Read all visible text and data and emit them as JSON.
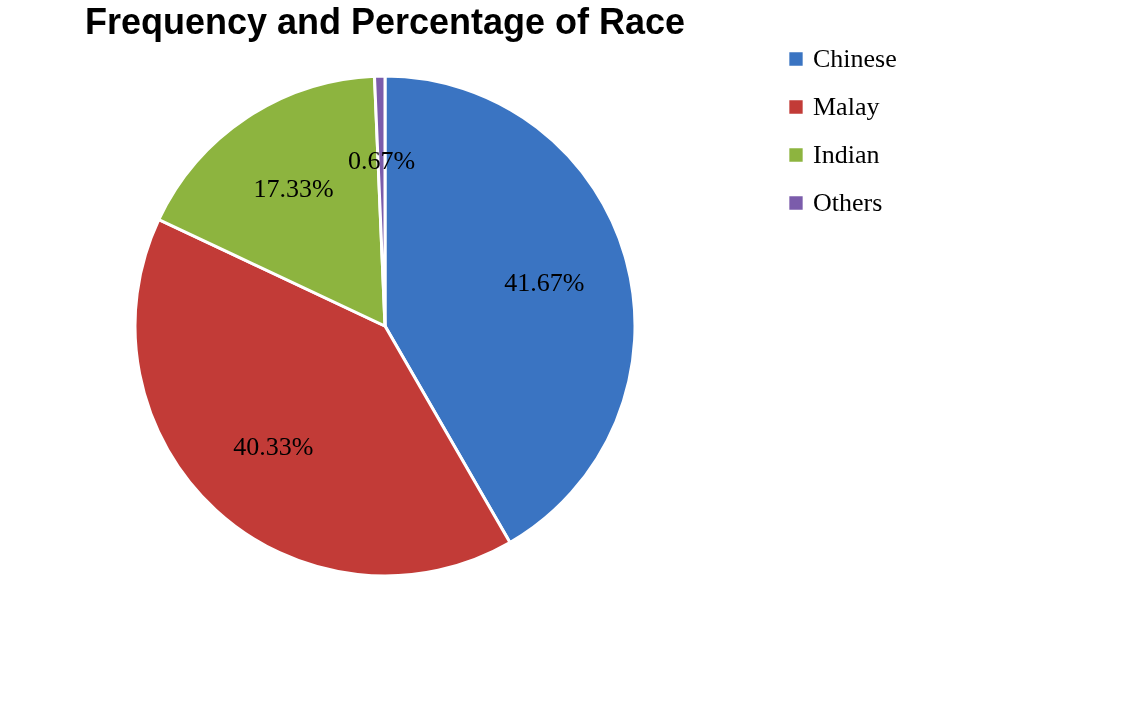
{
  "chart_data": {
    "type": "pie",
    "title": "Frequency and Percentage of Race",
    "categories": [
      "Chinese",
      "Malay",
      "Indian",
      "Others"
    ],
    "values": [
      41.67,
      40.33,
      17.33,
      0.67
    ],
    "value_labels": [
      "41.67%",
      "40.33%",
      "17.33%",
      "0.67%"
    ],
    "colors": [
      "#3a74c2",
      "#c23b37",
      "#8db43f",
      "#7b5cab"
    ],
    "legend": "right"
  }
}
